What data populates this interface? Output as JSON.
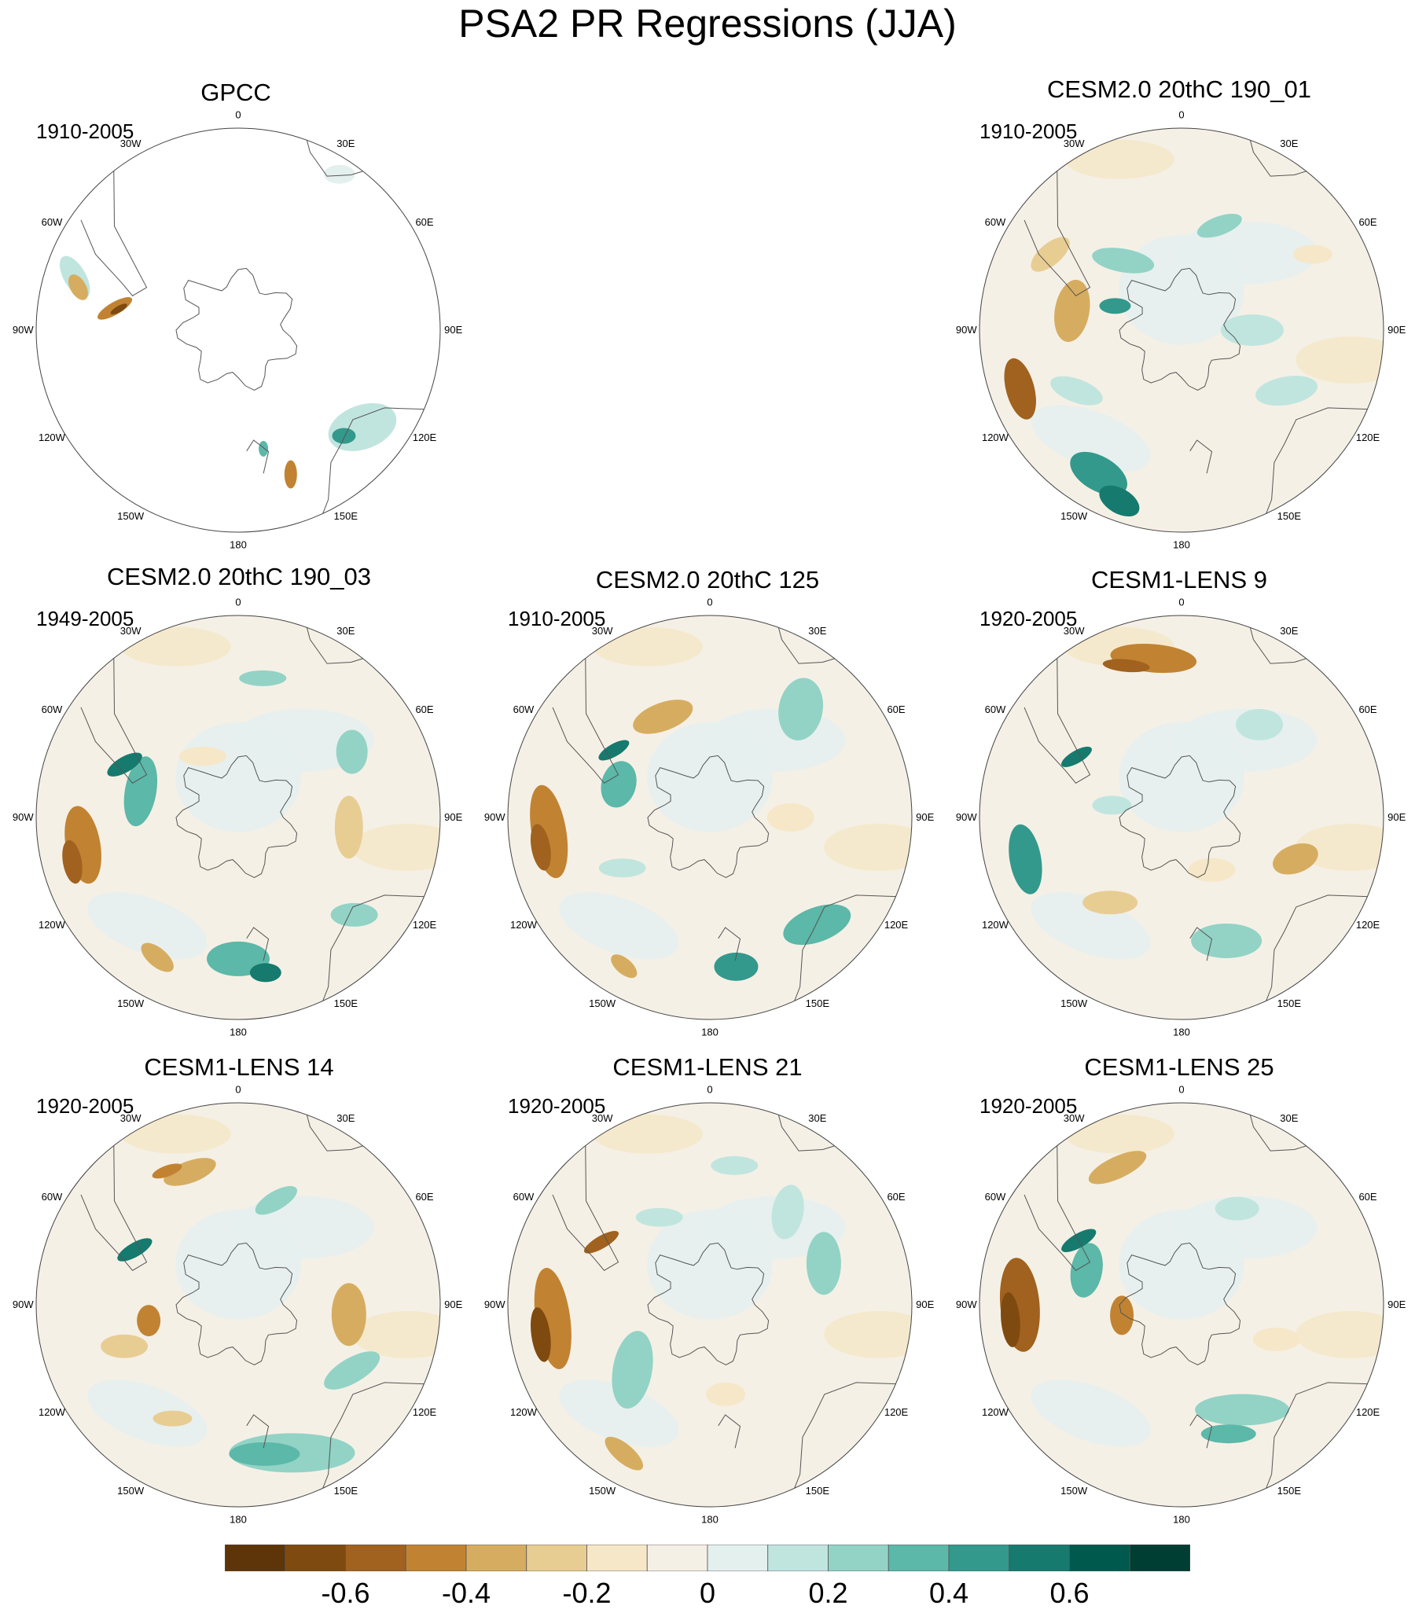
{
  "title": "PSA2 PR Regressions (JJA)",
  "lon_labels": [
    "0",
    "30E",
    "60E",
    "90E",
    "120E",
    "150E",
    "180",
    "150W",
    "120W",
    "90W",
    "60W",
    "30W"
  ],
  "panels": [
    {
      "title": "GPCC",
      "period": "1910-2005",
      "kind": "obs"
    },
    {
      "title": "CESM2.0 20thC 190_01",
      "period": "1910-2005",
      "kind": "model"
    },
    {
      "title": "CESM2.0 20thC 190_03",
      "period": "1949-2005",
      "kind": "model"
    },
    {
      "title": "CESM2.0 20thC 125",
      "period": "1910-2005",
      "kind": "model"
    },
    {
      "title": "CESM1-LENS 9",
      "period": "1920-2005",
      "kind": "model"
    },
    {
      "title": "CESM1-LENS 14",
      "period": "1920-2005",
      "kind": "model"
    },
    {
      "title": "CESM1-LENS 21",
      "period": "1920-2005",
      "kind": "model"
    },
    {
      "title": "CESM1-LENS 25",
      "period": "1920-2005",
      "kind": "model"
    }
  ],
  "colorbar": {
    "colors": [
      "#5e3508",
      "#7e4a0f",
      "#a0621e",
      "#c18332",
      "#d6ad60",
      "#e8cd93",
      "#f5e7c8",
      "#f5f0e6",
      "#e4f0ee",
      "#c0e5de",
      "#92d3c6",
      "#5cb8a8",
      "#33998c",
      "#167a6e",
      "#00594d",
      "#003d33"
    ],
    "tick_labels": [
      "-0.6",
      "-0.4",
      "-0.2",
      "0",
      "0.2",
      "0.4",
      "0.6"
    ]
  }
}
